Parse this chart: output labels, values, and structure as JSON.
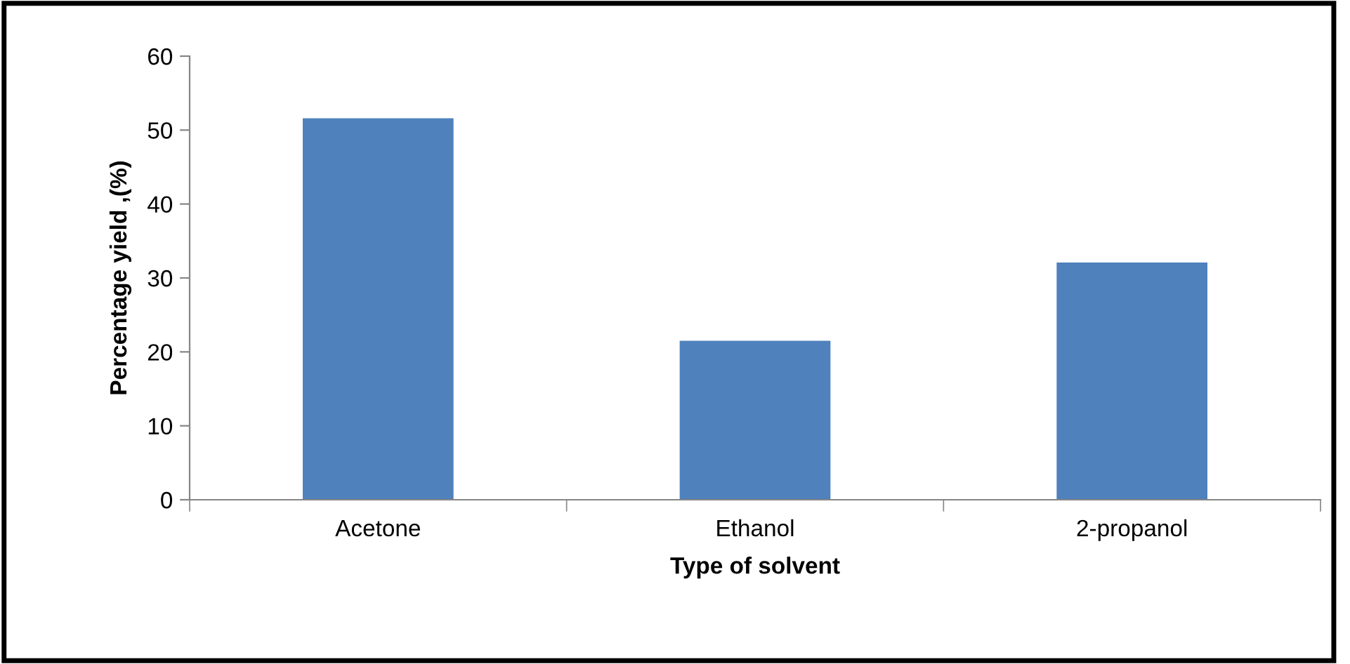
{
  "chart_data": {
    "type": "bar",
    "xlabel": "Type of solvent",
    "ylabel": "Percentage yield ,(%)",
    "categories": [
      "Acetone",
      "Ethanol",
      "2-propanol"
    ],
    "values": [
      51.6,
      21.5,
      32.1
    ],
    "color": "#4f81bd",
    "ylim": [
      0,
      60
    ],
    "yticks": [
      0,
      10,
      20,
      30,
      40,
      50,
      60
    ],
    "grid": false,
    "legend": false
  }
}
